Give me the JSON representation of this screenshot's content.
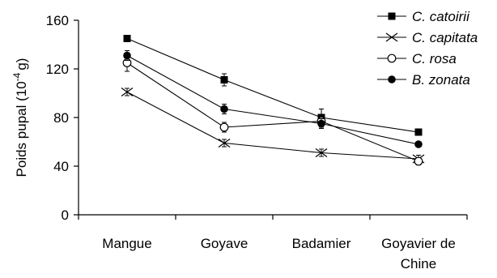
{
  "chart_data": {
    "type": "line",
    "categories": [
      "Mangue",
      "Goyave",
      "Badamier",
      "Goyavier de Chine"
    ],
    "ylabel_main": "Poids pupal (10",
    "ylabel_exponent": "-4",
    "ylabel_unit": "g)",
    "xlabel": "",
    "ylim": [
      0,
      160
    ],
    "yticks": [
      "0",
      "40",
      "80",
      "120",
      "160"
    ],
    "grid": false,
    "legend_position": "top-right",
    "series": [
      {
        "name": "C. catoirii",
        "marker": "square",
        "values": [
          145,
          111,
          80,
          68
        ],
        "errors": [
          2,
          5,
          7,
          2
        ]
      },
      {
        "name": "C. capitata",
        "marker": "x",
        "values": [
          101,
          59,
          51,
          46
        ],
        "errors": [
          3,
          3,
          3,
          3
        ]
      },
      {
        "name": "C. rosa",
        "marker": "circle-open",
        "values": [
          125,
          72,
          77,
          44
        ],
        "errors": [
          7,
          4,
          5,
          3
        ]
      },
      {
        "name": "B. zonata",
        "marker": "circle-filled",
        "values": [
          131,
          87,
          75,
          58
        ],
        "errors": [
          4,
          4,
          4,
          2
        ]
      }
    ]
  }
}
